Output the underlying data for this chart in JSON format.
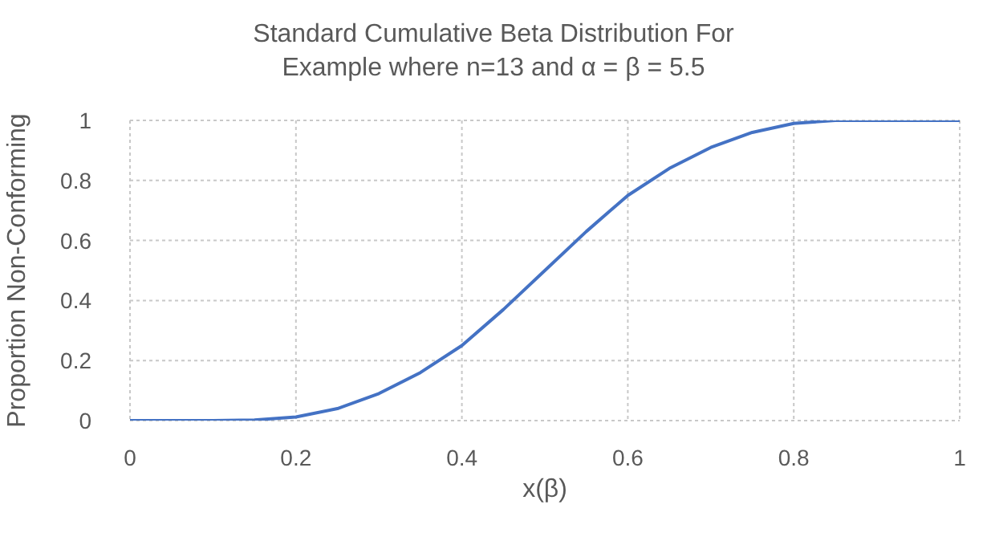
{
  "chart_data": {
    "type": "line",
    "title": "Standard Cumulative Beta Distribution For\nExample where n=13 and α = β = 5.5",
    "xlabel": "x(β)",
    "ylabel": "Proportion Non-Conforming",
    "x": [
      0,
      0.05,
      0.1,
      0.15,
      0.2,
      0.25,
      0.3,
      0.35,
      0.4,
      0.45,
      0.5,
      0.55,
      0.6,
      0.65,
      0.7,
      0.75,
      0.8,
      0.85,
      0.9,
      0.95,
      1
    ],
    "series": [
      {
        "color": "#4472c4",
        "values": [
          0,
          0,
          0,
          0.002,
          0.012,
          0.04,
          0.09,
          0.16,
          0.25,
          0.37,
          0.5,
          0.63,
          0.75,
          0.84,
          0.91,
          0.96,
          0.99,
          1,
          1,
          1,
          1
        ]
      }
    ],
    "xlim": [
      0,
      1
    ],
    "xticks": [
      0,
      0.2,
      0.4,
      0.6,
      0.8,
      1
    ],
    "ylim": [
      0,
      1
    ],
    "yticks": [
      0,
      0.2,
      0.4,
      0.6,
      0.8,
      1
    ],
    "grid": true,
    "legend": false,
    "marker": "none",
    "line_style": "solid"
  }
}
